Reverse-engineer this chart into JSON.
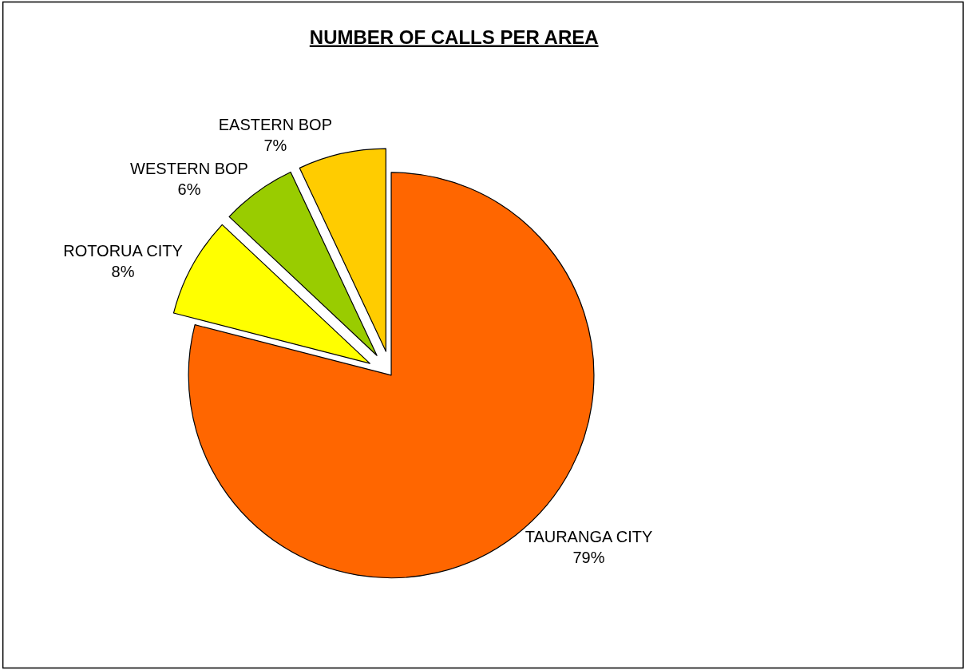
{
  "chart_data": {
    "type": "pie",
    "title": "NUMBER OF CALLS PER AREA",
    "categories": [
      "TAURANGA CITY",
      "ROTORUA CITY",
      "WESTERN BOP",
      "EASTERN BOP"
    ],
    "values": [
      79,
      8,
      6,
      7
    ],
    "colors": [
      "#ff6600",
      "#ffff00",
      "#99cc00",
      "#ffcc00"
    ],
    "value_labels": [
      "79%",
      "8%",
      "6%",
      "7%"
    ],
    "legend": false
  }
}
